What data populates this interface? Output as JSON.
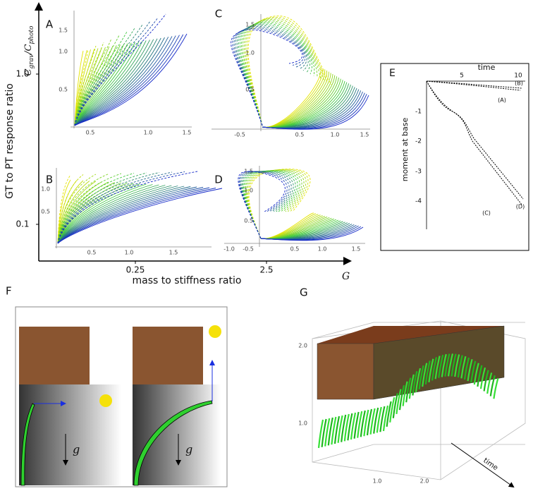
{
  "main": {
    "y_axis_label": "GT to PT response ratio",
    "y_title": {
      "symbol": "C",
      "num_sub": "grav",
      "slash": "/",
      "den_sub": "photo"
    },
    "y_ticks": [
      "1.0",
      "0.1"
    ],
    "x_axis_label": "mass to stiffness ratio",
    "x_ticks": [
      "0.25",
      "2.5"
    ],
    "x_symbol": "G"
  },
  "panels": [
    {
      "label": "A",
      "x_ticks": [
        "0.5",
        "1.0",
        "1.5"
      ],
      "y_ticks": [
        "0.5",
        "1.0",
        "1.5"
      ]
    },
    {
      "label": "B",
      "x_ticks": [
        "0.5",
        "1.0",
        "1.5"
      ],
      "y_ticks": [
        "0.5",
        "1.0"
      ]
    },
    {
      "label": "C",
      "x_ticks": [
        "-0.5",
        "0.5",
        "1.0",
        "1.5"
      ],
      "y_ticks": [
        "0.5",
        "1.0",
        "1.5"
      ]
    },
    {
      "label": "D",
      "x_ticks": [
        "-1.0",
        "-0.5",
        "0.5",
        "1.0",
        "1.5"
      ],
      "y_ticks": [
        "0.5",
        "1.0",
        "1.5"
      ]
    }
  ],
  "panel_e": {
    "label": "E",
    "x_title": "time",
    "x_ticks": [
      "5",
      "10"
    ],
    "y_ticks": [
      "-1",
      "-2",
      "-3",
      "-4"
    ],
    "y_title": "moment at base",
    "curve_labels": [
      "(A)",
      "(B)",
      "(C)",
      "(D)"
    ]
  },
  "panel_f": {
    "label": "F",
    "gravity_symbols": [
      "g",
      "g"
    ]
  },
  "panel_g": {
    "label": "G",
    "y_ticks": [
      "2.0",
      "1.0"
    ],
    "x_ticks": [
      "1.0",
      "2.0"
    ],
    "axis_title": "time"
  }
}
